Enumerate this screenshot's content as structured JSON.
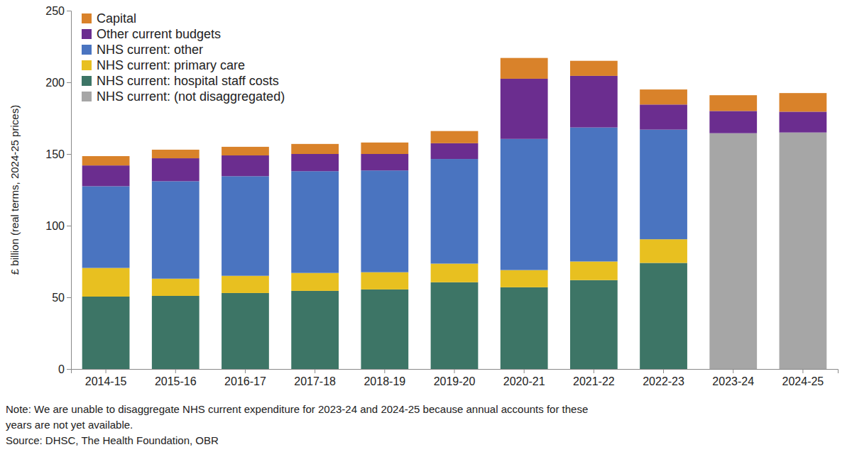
{
  "chart_data": {
    "type": "bar",
    "stacked": true,
    "grid": false,
    "legend": "top-left",
    "y_label": "£ billion (real terms, 2024-25 prices)",
    "note": [
      "Note: We are unable to disaggregate NHS current expenditure for 2023-24 and 2024-25 because annual accounts for these",
      "years are not yet available."
    ],
    "source": "Source: DHSC, The Health Foundation, OBR",
    "categories": [
      "2014-15",
      "2015-16",
      "2016-17",
      "2017-18",
      "2018-19",
      "2019-20",
      "2020-21",
      "2021-22",
      "2022-23",
      "2023-24",
      "2024-25"
    ],
    "ylim": [
      0,
      250
    ],
    "yticks": [
      0,
      50,
      100,
      150,
      200,
      250
    ],
    "series": [
      {
        "name": "NHS current: (not disaggregated)",
        "color": "#a6a6a6",
        "values": [
          null,
          null,
          null,
          null,
          null,
          null,
          null,
          null,
          null,
          164.5,
          165
        ]
      },
      {
        "name": "NHS current: hospital staff costs",
        "color": "#3d7566",
        "values": [
          50.5,
          51,
          53,
          54.5,
          55.5,
          60.5,
          57,
          62,
          74,
          null,
          null
        ]
      },
      {
        "name": "NHS current: primary care",
        "color": "#e8c020",
        "values": [
          20,
          12,
          12,
          12.5,
          12,
          13,
          12,
          13,
          16.5,
          null,
          null
        ]
      },
      {
        "name": "NHS current: other",
        "color": "#4a74c0",
        "values": [
          57,
          68,
          69.5,
          71,
          71,
          73,
          91.5,
          93.5,
          76.5,
          null,
          null
        ]
      },
      {
        "name": "Other current budgets",
        "color": "#6b2d8f",
        "values": [
          14.5,
          16,
          14.5,
          12,
          11.5,
          11,
          42,
          36,
          17.5,
          15.5,
          14.5
        ]
      },
      {
        "name": "Capital",
        "color": "#d9822a",
        "values": [
          6.5,
          6,
          6,
          7,
          8,
          8.5,
          14.5,
          10.5,
          10.5,
          11,
          13
        ]
      }
    ]
  }
}
